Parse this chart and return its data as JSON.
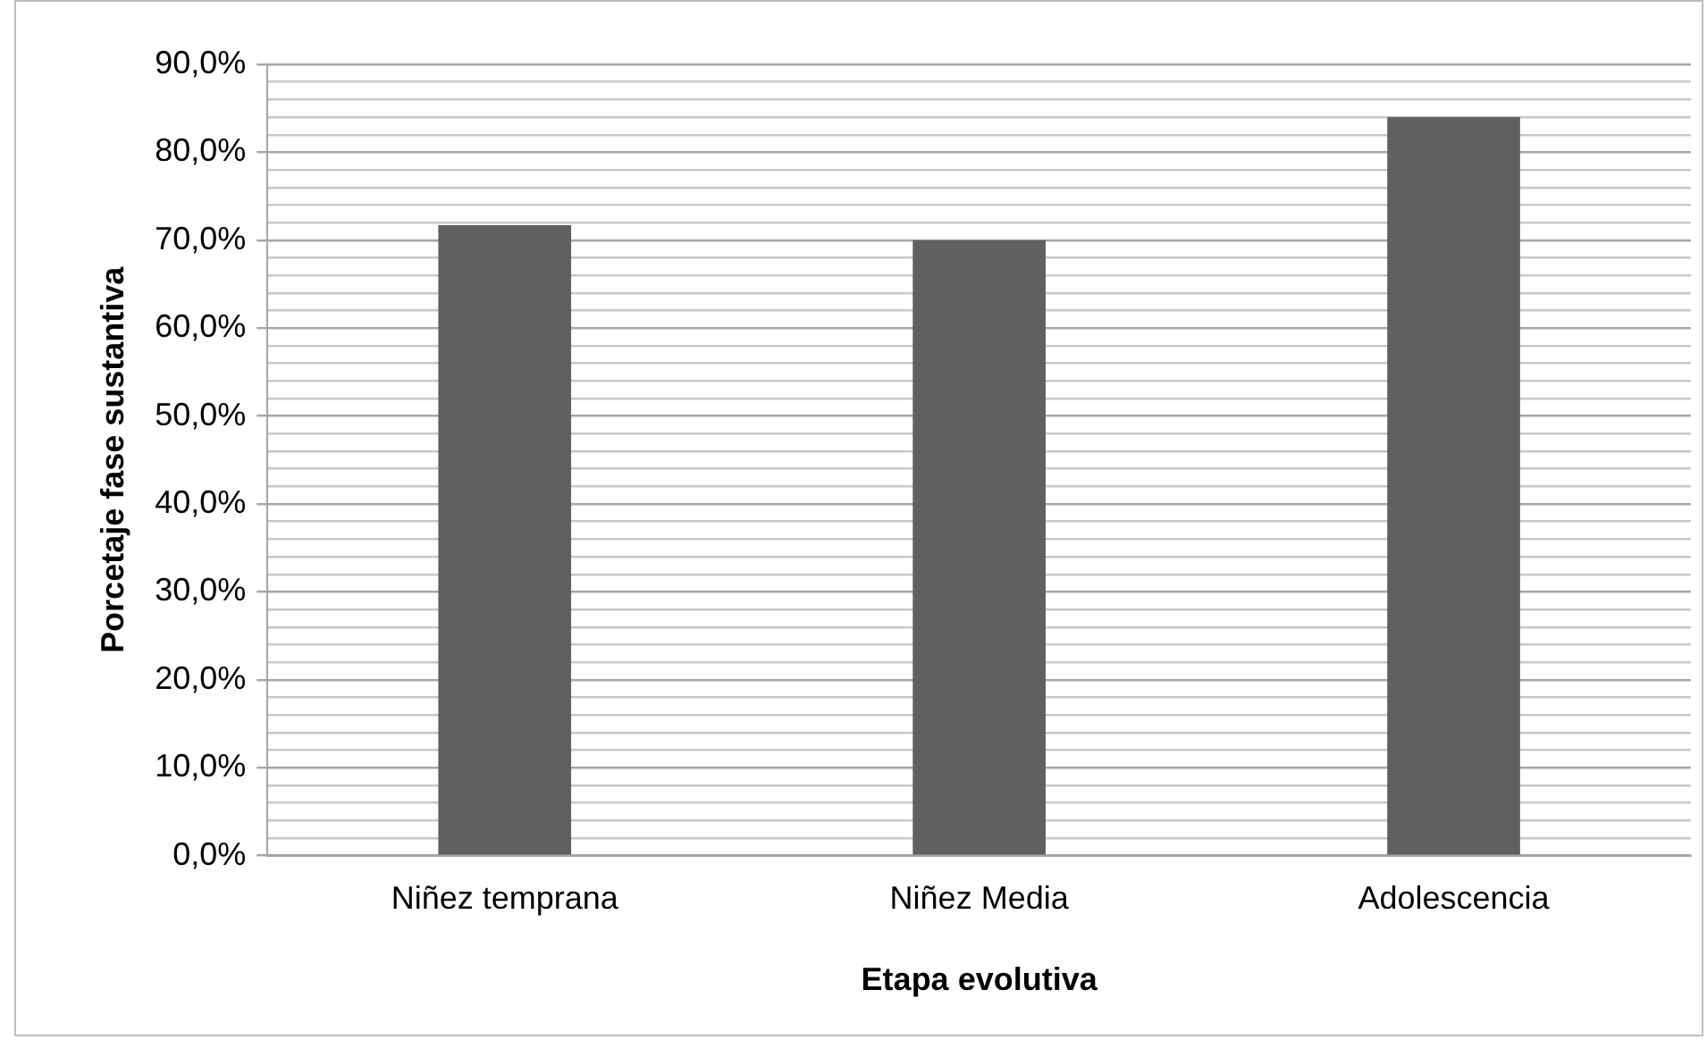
{
  "chart_data": {
    "type": "bar",
    "xlabel": "Etapa evolutiva",
    "ylabel": "Porcetaje fase sustantiva",
    "categories": [
      "Niñez temprana",
      "Niñez Media",
      "Adolescencia"
    ],
    "values": [
      71.7,
      70.0,
      84.0
    ],
    "color": "#606060",
    "ylim": [
      0,
      90
    ],
    "yticks": [
      {
        "value": 0,
        "label": "0,0%"
      },
      {
        "value": 2,
        "label": null
      },
      {
        "value": 4,
        "label": null
      },
      {
        "value": 6,
        "label": null
      },
      {
        "value": 8,
        "label": null
      },
      {
        "value": 10,
        "label": "10,0%"
      },
      {
        "value": 12,
        "label": null
      },
      {
        "value": 14,
        "label": null
      },
      {
        "value": 16,
        "label": null
      },
      {
        "value": 18,
        "label": null
      },
      {
        "value": 20,
        "label": "20,0%"
      },
      {
        "value": 22,
        "label": null
      },
      {
        "value": 24,
        "label": null
      },
      {
        "value": 26,
        "label": null
      },
      {
        "value": 28,
        "label": null
      },
      {
        "value": 30,
        "label": "30,0%"
      },
      {
        "value": 32,
        "label": null
      },
      {
        "value": 34,
        "label": null
      },
      {
        "value": 36,
        "label": null
      },
      {
        "value": 38,
        "label": null
      },
      {
        "value": 40,
        "label": "40,0%"
      },
      {
        "value": 42,
        "label": null
      },
      {
        "value": 44,
        "label": null
      },
      {
        "value": 46,
        "label": null
      },
      {
        "value": 48,
        "label": null
      },
      {
        "value": 50,
        "label": "50,0%"
      },
      {
        "value": 52,
        "label": null
      },
      {
        "value": 54,
        "label": null
      },
      {
        "value": 56,
        "label": null
      },
      {
        "value": 58,
        "label": null
      },
      {
        "value": 60,
        "label": "60,0%"
      },
      {
        "value": 62,
        "label": null
      },
      {
        "value": 64,
        "label": null
      },
      {
        "value": 66,
        "label": null
      },
      {
        "value": 68,
        "label": null
      },
      {
        "value": 70,
        "label": "70,0%"
      },
      {
        "value": 72,
        "label": null
      },
      {
        "value": 74,
        "label": null
      },
      {
        "value": 76,
        "label": null
      },
      {
        "value": 78,
        "label": null
      },
      {
        "value": 80,
        "label": "80,0%"
      },
      {
        "value": 82,
        "label": null
      },
      {
        "value": 84,
        "label": null
      },
      {
        "value": 86,
        "label": null
      },
      {
        "value": 88,
        "label": null
      },
      {
        "value": 90,
        "label": "90,0%"
      }
    ],
    "grid": "y",
    "legend": false
  }
}
